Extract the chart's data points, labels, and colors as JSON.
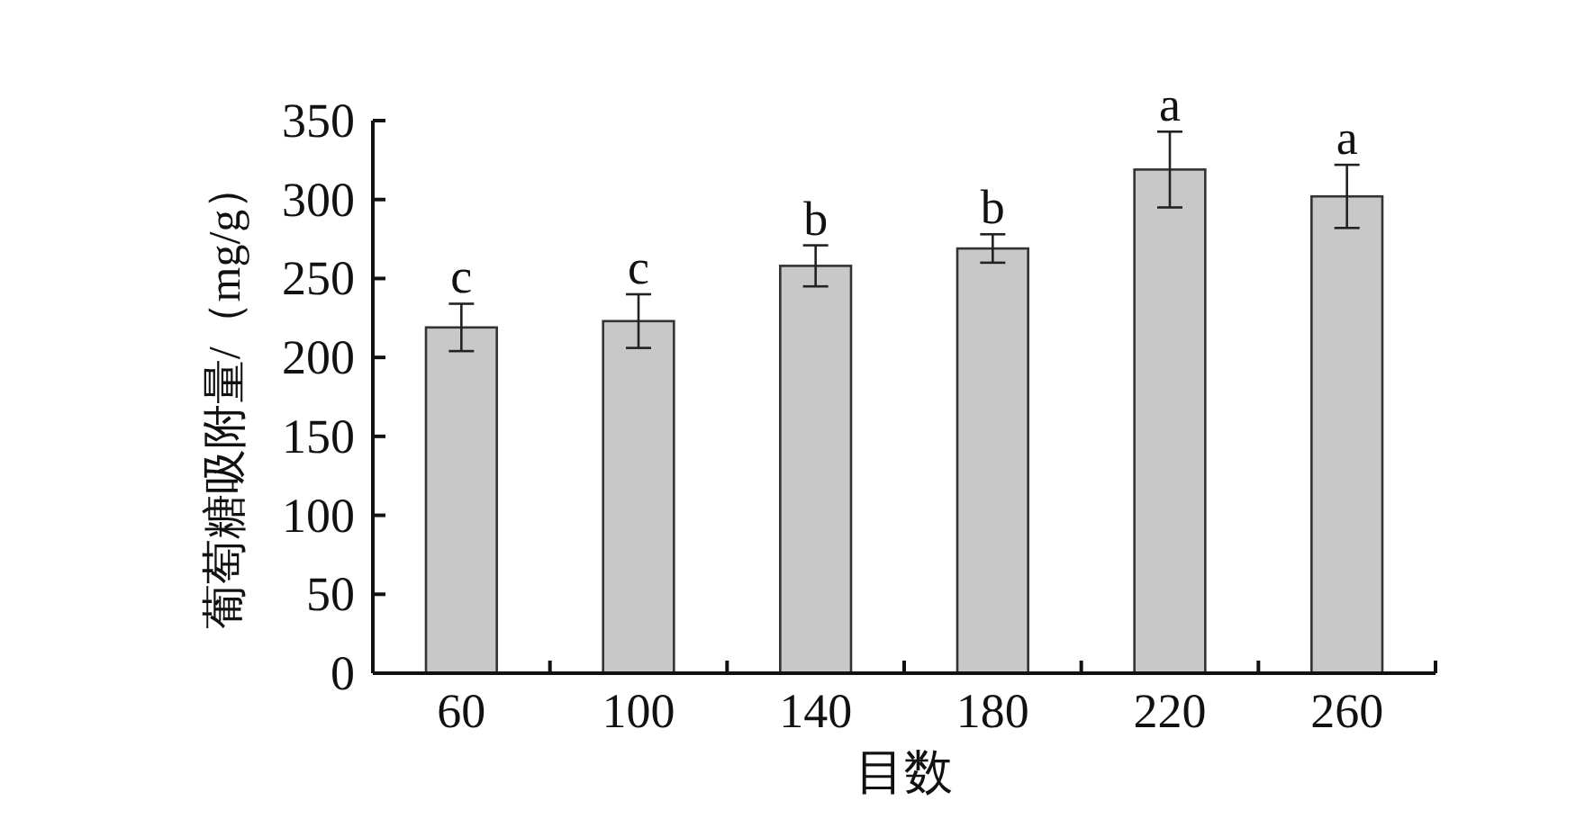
{
  "chart_data": {
    "type": "bar",
    "xlabel": "目数",
    "ylabel": "葡萄糖吸附量/（mg/g）",
    "categories": [
      "60",
      "100",
      "140",
      "180",
      "220",
      "260"
    ],
    "values": [
      219,
      223,
      258,
      269,
      319,
      302
    ],
    "errors": [
      15,
      17,
      13,
      9,
      24,
      20
    ],
    "color": "#c8c8c8",
    "ylim": [
      0,
      350
    ],
    "yticks": [
      0,
      50,
      100,
      150,
      200,
      250,
      300,
      350
    ],
    "annotations": [
      {
        "text": "c",
        "x": "60",
        "y": 234
      },
      {
        "text": "c",
        "x": "100",
        "y": 240
      },
      {
        "text": "b",
        "x": "140",
        "y": 271
      },
      {
        "text": "b",
        "x": "180",
        "y": 278
      },
      {
        "text": "a",
        "x": "220",
        "y": 343
      },
      {
        "text": "a",
        "x": "260",
        "y": 322
      }
    ]
  }
}
